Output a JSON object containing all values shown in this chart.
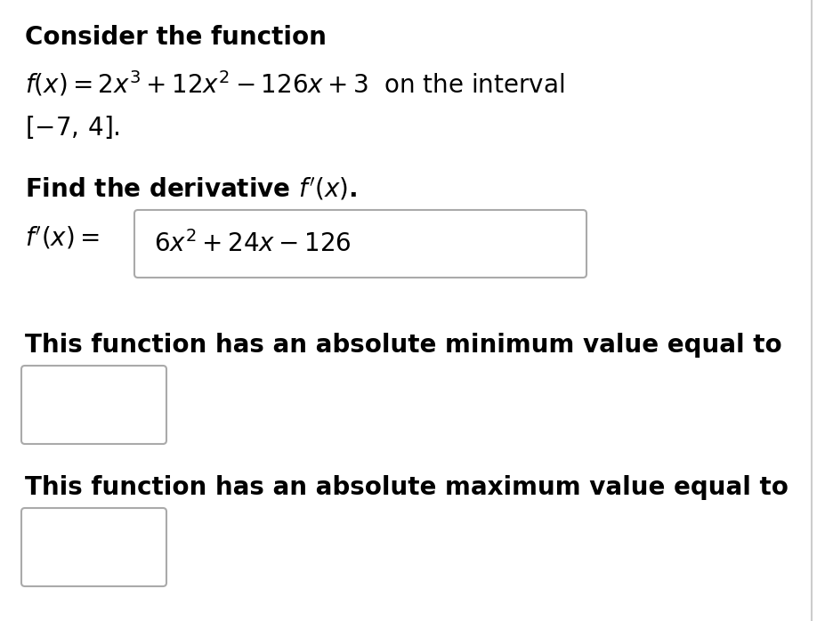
{
  "background_color": "#ffffff",
  "text_color": "#000000",
  "box_edge_color": "#aaaaaa",
  "line1": "Consider the function",
  "line2_math": "$f(x) = 2x^3 + 12x^2 - 126x + 3$  on the interval",
  "line3": "$[-7,\\, 4].$",
  "line4": "Find the derivative $f'(x)$.",
  "line5_prefix": "$f'(x) =$",
  "line5_box_content": "$6x^2 + 24x - 126$",
  "line6": "This function has an absolute minimum value equal to",
  "line7": "This function has an absolute maximum value equal to",
  "font_size": 20,
  "fig_width": 9.27,
  "fig_height": 6.98,
  "dpi": 100
}
